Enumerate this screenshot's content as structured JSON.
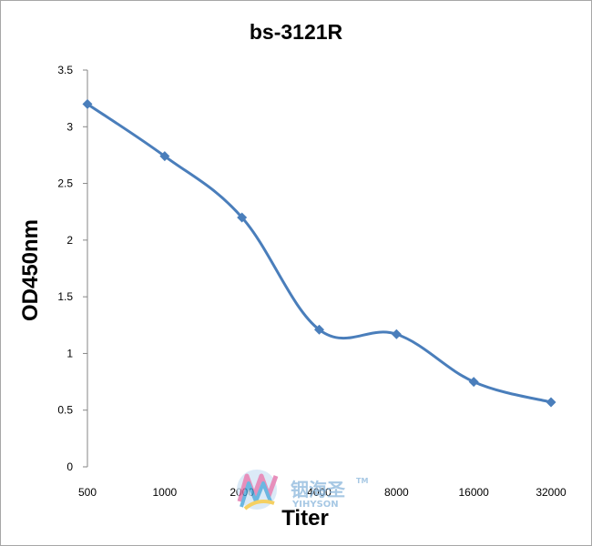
{
  "chart_data": {
    "type": "line",
    "title": "bs-3121R",
    "xlabel": "Titer",
    "ylabel": "OD450nm",
    "categories": [
      "500",
      "1000",
      "2000",
      "4000",
      "8000",
      "16000",
      "32000"
    ],
    "series": [
      {
        "values": [
          3.2,
          2.74,
          2.2,
          1.21,
          1.17,
          0.75,
          0.57
        ]
      }
    ],
    "yticks": [
      "0",
      "0.5",
      "1",
      "1.5",
      "2",
      "2.5",
      "3",
      "3.5"
    ],
    "ylim": [
      0,
      3.5
    ],
    "grid": false,
    "legend": "none",
    "colors": {
      "line": "#4a7ebb",
      "marker": "#4a7ebb",
      "axis": "#868686"
    }
  },
  "watermark": {
    "brand_cn": "铟海圣",
    "brand_en": "YIHYSON",
    "tm": "TM"
  }
}
